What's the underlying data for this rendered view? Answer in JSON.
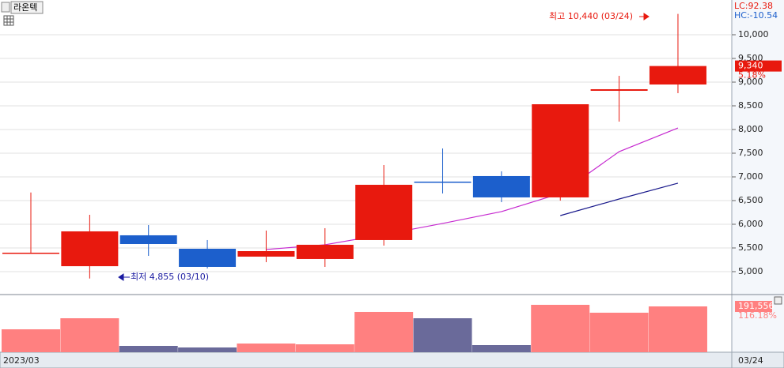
{
  "chart_data": {
    "type": "candlestick",
    "tab_title": "라온텍",
    "lc_label": "LC:92.38",
    "hc_label": "HC:-10.54",
    "x_start_label": "2023/03",
    "x_end_label": "03/24",
    "open": [
      5400,
      5115,
      5767,
      5483,
      5317,
      5267,
      5667,
      6900,
      7017,
      6567,
      8817,
      8950
    ],
    "high": [
      6670,
      6200,
      5983,
      5667,
      5867,
      5917,
      7250,
      7600,
      7117,
      8533,
      9133,
      10440
    ],
    "low": [
      5400,
      4855,
      5333,
      5067,
      5200,
      5100,
      5550,
      6650,
      6467,
      6500,
      8167,
      8767
    ],
    "close": [
      5400,
      5850,
      5583,
      5100,
      5433,
      5567,
      6833,
      6883,
      6567,
      8533,
      8850,
      9340
    ],
    "up_color": "#e8190e",
    "down_color": "#1c5fcc",
    "moving_averages": [
      {
        "color": "#c62ad0",
        "values": [
          null,
          null,
          null,
          null,
          5467,
          5567,
          5783,
          6017,
          6267,
          6650,
          7533,
          8033
        ]
      },
      {
        "color": "#1a1a8c",
        "values": [
          null,
          null,
          null,
          null,
          null,
          null,
          null,
          null,
          null,
          6183,
          6533,
          6867
        ]
      }
    ],
    "ylim": [
      4533,
      10700
    ],
    "yticks": [
      {
        "value": 5000,
        "label": "5,000"
      },
      {
        "value": 5500,
        "label": "5,500"
      },
      {
        "value": 6000,
        "label": "6,000"
      },
      {
        "value": 6500,
        "label": "6,500"
      },
      {
        "value": 7000,
        "label": "7,000"
      },
      {
        "value": 7500,
        "label": "7,500"
      },
      {
        "value": 8000,
        "label": "8,000"
      },
      {
        "value": 8500,
        "label": "8,500"
      },
      {
        "value": 9000,
        "label": "9,000"
      },
      {
        "value": 9500,
        "label": "9,500"
      },
      {
        "value": 10000,
        "label": "10,000"
      }
    ],
    "grid": true,
    "last_close_label": "9,340",
    "change_label": "5.18%",
    "high_annotation": "최고 10,440 (03/24)",
    "low_annotation": "최저 4,855 (03/10)",
    "volume": [
      95800,
      142000,
      26400,
      19800,
      36300,
      33000,
      168500,
      142000,
      29700,
      198200,
      165200,
      191556
    ],
    "volume_up_color": "#ff8080",
    "volume_down_color": "#6a6a9a",
    "vylim": [
      0,
      237800
    ],
    "volume_label": "191,556",
    "volume_ratio_label": "116.18%"
  }
}
